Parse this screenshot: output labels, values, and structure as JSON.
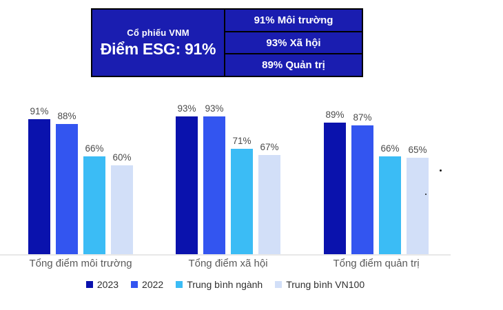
{
  "summary_card": {
    "stock_label": "Cổ phiếu VNM",
    "esg_score": "Điểm ESG: 91%",
    "breakdown": [
      "91% Môi trường",
      "93% Xã hội",
      "89% Quản trị"
    ],
    "background": "#1a1db0",
    "border_color": "#000000",
    "text_color": "#ffffff"
  },
  "chart_data": {
    "type": "bar",
    "categories": [
      "Tổng điểm môi trường",
      "Tổng điểm xã hội",
      "Tổng điểm quản trị"
    ],
    "series": [
      {
        "name": "2023",
        "color": "#0a12ad",
        "values": [
          91,
          93,
          89
        ]
      },
      {
        "name": "2022",
        "color": "#3355f0",
        "values": [
          88,
          93,
          87
        ]
      },
      {
        "name": "Trung bình ngành",
        "color": "#3bbcf5",
        "values": [
          66,
          71,
          66
        ]
      },
      {
        "name": "Trung bình VN100",
        "color": "#d2dff8",
        "values": [
          60,
          67,
          65
        ]
      }
    ],
    "value_suffix": "%",
    "ylim": [
      0,
      100
    ],
    "grid": false,
    "legend_position": "bottom",
    "value_labels_shown": true
  }
}
